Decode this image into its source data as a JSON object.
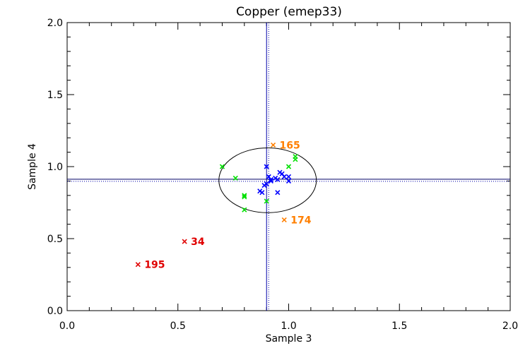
{
  "chart_data": {
    "type": "scatter",
    "title": "Copper (emep33)",
    "xlabel": "Sample 3",
    "ylabel": "Sample 4",
    "xlim": [
      0,
      2
    ],
    "ylim": [
      0,
      2
    ],
    "xticks": [
      "0.0",
      "0.5",
      "1.0",
      "1.5",
      "2.0"
    ],
    "yticks": [
      "0.0",
      "0.5",
      "1.0",
      "1.5",
      "2.0"
    ],
    "reference_lines": {
      "x": 0.905,
      "y": 0.905
    },
    "ellipse": {
      "cx": 0.905,
      "cy": 0.905,
      "rx": 0.22,
      "ry": 0.225
    },
    "series": [
      {
        "color": "#0000ff",
        "points": [
          [
            0.9,
            1.0
          ],
          [
            0.91,
            0.93
          ],
          [
            0.92,
            0.9
          ],
          [
            0.9,
            0.88
          ],
          [
            0.89,
            0.87
          ],
          [
            0.87,
            0.83
          ],
          [
            0.88,
            0.82
          ],
          [
            0.95,
            0.82
          ],
          [
            0.96,
            0.96
          ],
          [
            0.97,
            0.95
          ],
          [
            0.98,
            0.93
          ],
          [
            1.0,
            0.93
          ],
          [
            1.0,
            0.9
          ],
          [
            0.95,
            0.91
          ],
          [
            0.92,
            0.91
          ],
          [
            0.94,
            0.92
          ]
        ]
      },
      {
        "color": "#00e000",
        "points": [
          [
            0.7,
            1.0
          ],
          [
            0.76,
            0.92
          ],
          [
            0.8,
            0.79
          ],
          [
            0.8,
            0.8
          ],
          [
            0.8,
            0.7
          ],
          [
            0.9,
            0.76
          ],
          [
            1.0,
            1.0
          ],
          [
            1.03,
            1.05
          ],
          [
            1.03,
            1.07
          ]
        ]
      },
      {
        "color": "#ff7f00",
        "points": [
          {
            "x": 0.93,
            "y": 1.15,
            "label": "165"
          },
          {
            "x": 0.98,
            "y": 0.63,
            "label": "174"
          }
        ]
      },
      {
        "color": "#e00000",
        "points": [
          {
            "x": 0.53,
            "y": 0.48,
            "label": "34"
          },
          {
            "x": 0.32,
            "y": 0.32,
            "label": "195"
          }
        ]
      }
    ]
  }
}
